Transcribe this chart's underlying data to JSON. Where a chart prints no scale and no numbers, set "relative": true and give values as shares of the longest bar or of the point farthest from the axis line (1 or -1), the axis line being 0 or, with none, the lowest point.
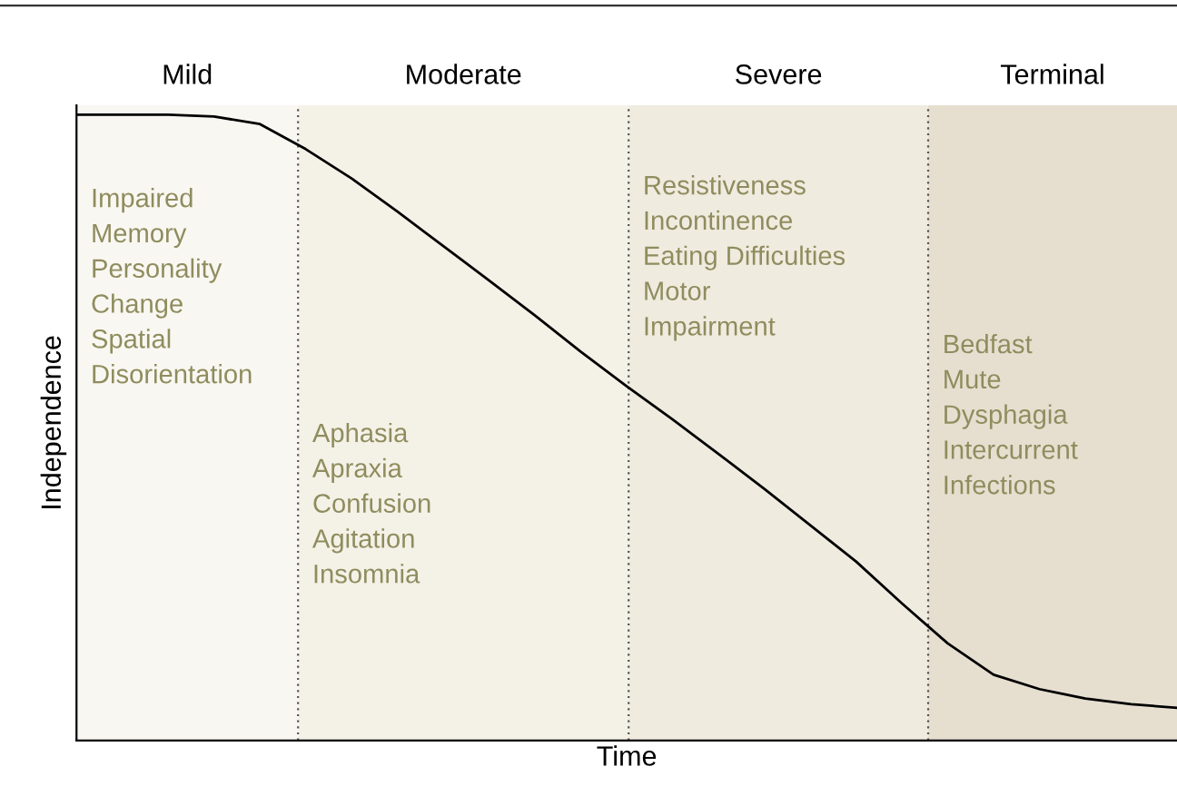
{
  "chart_data": {
    "type": "line",
    "xlabel": "Time",
    "ylabel": "Independence",
    "relative": true,
    "categories": [
      null,
      null,
      null,
      null,
      null,
      null,
      null,
      null,
      null,
      null,
      null,
      null,
      null,
      null,
      null,
      null,
      null,
      null,
      null,
      null,
      null,
      null,
      null,
      null,
      null
    ],
    "series": [
      {
        "color": "#000000",
        "values": [
          1,
          1,
          1,
          0.997,
          0.985,
          0.945,
          0.898,
          0.845,
          0.79,
          0.735,
          0.679,
          0.621,
          0.566,
          0.513,
          0.458,
          0.402,
          0.344,
          0.286,
          0.219,
          0.155,
          0.105,
          0.082,
          0.067,
          0.058,
          0.052
        ]
      }
    ],
    "annotations": [
      "Mild",
      "Moderate",
      "Severe",
      "Terminal",
      "Impaired\nMemory\nPersonality\nChange\nSpatial\nDisorientation",
      "Aphasia\nApraxia\nConfusion\nAgitation\nInsomnia",
      "Resistiveness\nIncontinence\nEating Difficulties\nMotor\nImpairment",
      "Bedfast\nMute\nDysphagia\nIntercurrent\nInfections"
    ]
  }
}
